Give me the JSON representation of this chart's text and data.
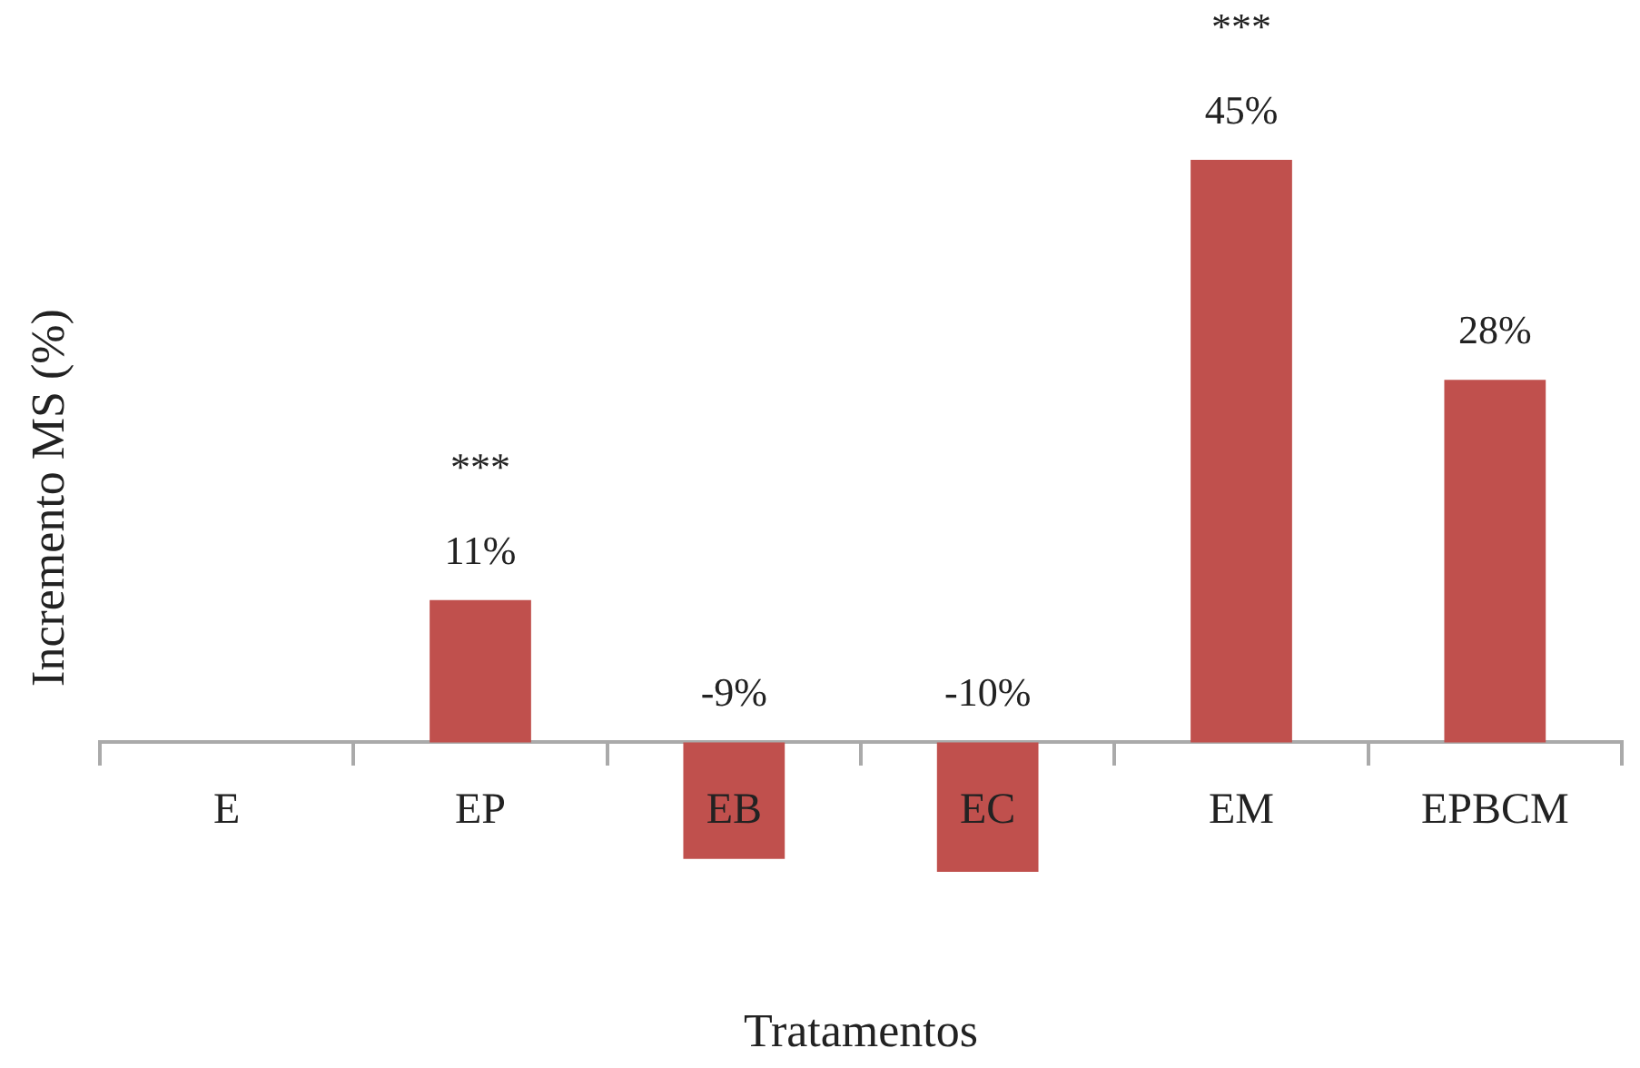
{
  "chart_data": {
    "type": "bar",
    "xlabel": "Tratamentos",
    "ylabel": "Incremento MS (%)",
    "categories": [
      "E",
      "EP",
      "EB",
      "EC",
      "EM",
      "EPBCM"
    ],
    "values": [
      0,
      11,
      -9,
      -10,
      45,
      28
    ],
    "value_labels": [
      null,
      "11%",
      "-9%",
      "-10%",
      "45%",
      "28%"
    ],
    "color": "#c0504d",
    "grid": false,
    "legend": false,
    "tick_labels": "x",
    "annotations": [
      {
        "text": "***",
        "x": "EP",
        "y": 11
      },
      {
        "text": "***",
        "x": "EM",
        "y": 45
      }
    ]
  }
}
